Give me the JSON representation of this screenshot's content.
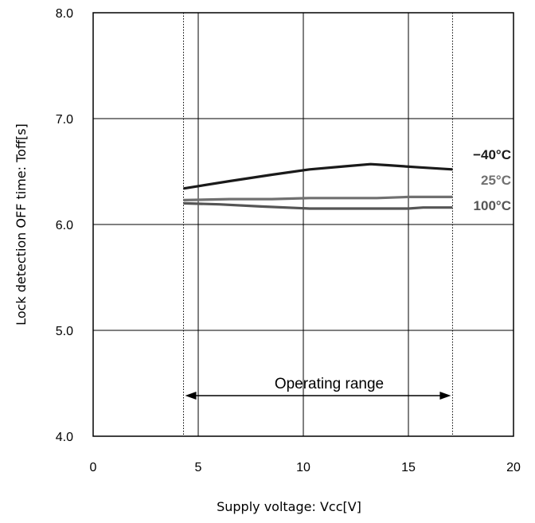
{
  "chart_data": {
    "type": "line",
    "title": "",
    "xlabel": "Supply voltage: Vcc[V]",
    "ylabel": "Lock detection OFF time: Toff[s]",
    "xlim": [
      0,
      20
    ],
    "ylim": [
      4.0,
      8.0
    ],
    "x_ticks": [
      "0",
      "5",
      "10",
      "15",
      "20"
    ],
    "y_ticks": [
      "4.0",
      "5.0",
      "6.0",
      "7.0",
      "8.0"
    ],
    "grid": true,
    "series": [
      {
        "name": "−40°C",
        "color": "#1a1a1a",
        "points": [
          [
            4.3,
            6.34
          ],
          [
            6.5,
            6.41
          ],
          [
            8.5,
            6.47
          ],
          [
            10.3,
            6.52
          ],
          [
            12.0,
            6.55
          ],
          [
            13.2,
            6.57
          ],
          [
            14.0,
            6.56
          ],
          [
            15.5,
            6.54
          ],
          [
            17.1,
            6.52
          ]
        ]
      },
      {
        "name": "25°C",
        "color": "#707070",
        "points": [
          [
            4.3,
            6.23
          ],
          [
            6.5,
            6.24
          ],
          [
            8.5,
            6.24
          ],
          [
            10.3,
            6.25
          ],
          [
            12.0,
            6.25
          ],
          [
            13.5,
            6.25
          ],
          [
            15.0,
            6.26
          ],
          [
            17.1,
            6.26
          ]
        ]
      },
      {
        "name": "100°C",
        "color": "#555555",
        "points": [
          [
            4.3,
            6.2
          ],
          [
            6.0,
            6.19
          ],
          [
            8.0,
            6.17
          ],
          [
            10.3,
            6.15
          ],
          [
            12.0,
            6.15
          ],
          [
            13.5,
            6.15
          ],
          [
            15.0,
            6.15
          ],
          [
            15.7,
            6.16
          ],
          [
            17.1,
            6.16
          ]
        ]
      }
    ],
    "operating_range": {
      "label": "Operating range",
      "start": 4.3,
      "end": 17.1
    }
  }
}
